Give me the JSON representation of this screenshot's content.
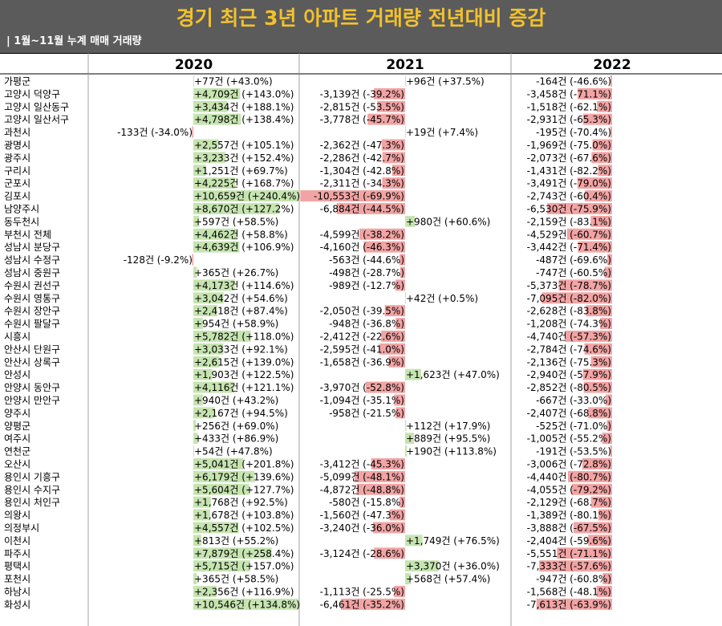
{
  "header": {
    "title": "경기 최근 3년 아파트 거래량 전년대비 증감",
    "subtitle": "| 1월~11월 누계 매매 거래량"
  },
  "colors": {
    "header_bg": "#5b5b5b",
    "title": "#f2c12e",
    "increase": "#c6e4b0",
    "decrease": "#f2a4a4"
  },
  "chart_data": {
    "type": "table",
    "unit": "건",
    "years": [
      "2020",
      "2021",
      "2022"
    ],
    "regions": [
      "가평군",
      "고양시 덕양구",
      "고양시 일산동구",
      "고양시 일산서구",
      "과천시",
      "광명시",
      "광주시",
      "구리시",
      "군포시",
      "김포시",
      "남양주시",
      "동두천시",
      "부천시 전체",
      "성남시 분당구",
      "성남시 수정구",
      "성남시 중원구",
      "수원시 권선구",
      "수원시 영통구",
      "수원시 장안구",
      "수원시 팔달구",
      "시흥시",
      "안산시 단원구",
      "안산시 상록구",
      "안성시",
      "안양시 동안구",
      "안양시 만안구",
      "양주시",
      "양평군",
      "여주시",
      "연천군",
      "오산시",
      "용인시 기흥구",
      "용인시 수지구",
      "용인시 처인구",
      "의왕시",
      "의정부시",
      "이천시",
      "파주시",
      "평택시",
      "포천시",
      "하남시",
      "화성시"
    ],
    "series": [
      {
        "name": "2020",
        "values": [
          77,
          4709,
          3434,
          4798,
          -133,
          2557,
          3233,
          1251,
          4225,
          10659,
          8670,
          597,
          4462,
          4639,
          -128,
          365,
          4173,
          3042,
          2418,
          954,
          5782,
          3033,
          2615,
          1903,
          4116,
          940,
          2167,
          256,
          433,
          54,
          5041,
          6179,
          5604,
          1768,
          1678,
          4557,
          813,
          7879,
          5715,
          365,
          2356,
          10546
        ],
        "pct": [
          43.0,
          143.0,
          188.1,
          138.4,
          -34.0,
          105.1,
          152.4,
          69.7,
          168.7,
          240.4,
          127.2,
          58.5,
          58.8,
          106.9,
          -9.2,
          26.7,
          114.6,
          54.6,
          87.4,
          58.9,
          118.0,
          92.1,
          139.0,
          122.5,
          121.1,
          43.2,
          94.5,
          69.0,
          86.9,
          47.8,
          201.8,
          139.6,
          127.7,
          92.5,
          103.8,
          102.5,
          55.2,
          258.4,
          157.0,
          58.5,
          116.9,
          134.8
        ]
      },
      {
        "name": "2021",
        "values": [
          96,
          -3139,
          -2815,
          -3778,
          19,
          -2362,
          -2286,
          -1304,
          -2311,
          -10553,
          -6884,
          980,
          -4599,
          -4160,
          -563,
          -498,
          -989,
          42,
          -2050,
          -948,
          -2412,
          -2595,
          -1658,
          1623,
          -3970,
          -1094,
          -958,
          112,
          889,
          190,
          -3412,
          -5099,
          -4872,
          -580,
          -1560,
          -3240,
          1749,
          -3124,
          3370,
          568,
          -1113,
          -6461
        ],
        "pct": [
          37.5,
          -39.2,
          -53.5,
          -45.7,
          7.4,
          -47.3,
          -42.7,
          -42.8,
          -34.3,
          -69.9,
          -44.5,
          60.6,
          -38.2,
          -46.3,
          -44.6,
          -28.7,
          -12.7,
          0.5,
          -39.5,
          -36.8,
          -22.6,
          -41.0,
          -36.9,
          47.0,
          -52.8,
          -35.1,
          -21.5,
          17.9,
          95.5,
          113.8,
          -45.3,
          -48.1,
          -48.8,
          -15.8,
          -47.3,
          -36.0,
          76.5,
          -28.6,
          36.0,
          57.4,
          -25.5,
          -35.2
        ]
      },
      {
        "name": "2022",
        "values": [
          -164,
          -3458,
          -1518,
          -2931,
          -195,
          -1969,
          -2073,
          -1431,
          -3491,
          -2743,
          -6530,
          -2159,
          -4529,
          -3442,
          -487,
          -747,
          -5373,
          -7095,
          -2628,
          -1208,
          -4740,
          -2784,
          -2136,
          -2940,
          -2852,
          -667,
          -2407,
          -525,
          -1005,
          -191,
          -3006,
          -4440,
          -4055,
          -2129,
          -1389,
          -3888,
          -2404,
          -5551,
          -7333,
          -947,
          -1568,
          -7613
        ],
        "pct": [
          -46.6,
          -71.1,
          -62.1,
          -65.3,
          -70.4,
          -75.0,
          -67.6,
          -82.2,
          -79.0,
          -60.4,
          -75.9,
          -83.1,
          -60.7,
          -71.4,
          -69.6,
          -60.5,
          -78.7,
          -82.0,
          -83.8,
          -74.3,
          -57.3,
          -74.6,
          -75.3,
          -57.9,
          -80.5,
          -33.0,
          -68.8,
          -71.0,
          -55.2,
          -53.5,
          -72.8,
          -80.7,
          -79.2,
          -68.7,
          -80.1,
          -67.5,
          -59.6,
          -71.1,
          -57.6,
          -60.8,
          -48.1,
          -63.9
        ]
      }
    ]
  }
}
